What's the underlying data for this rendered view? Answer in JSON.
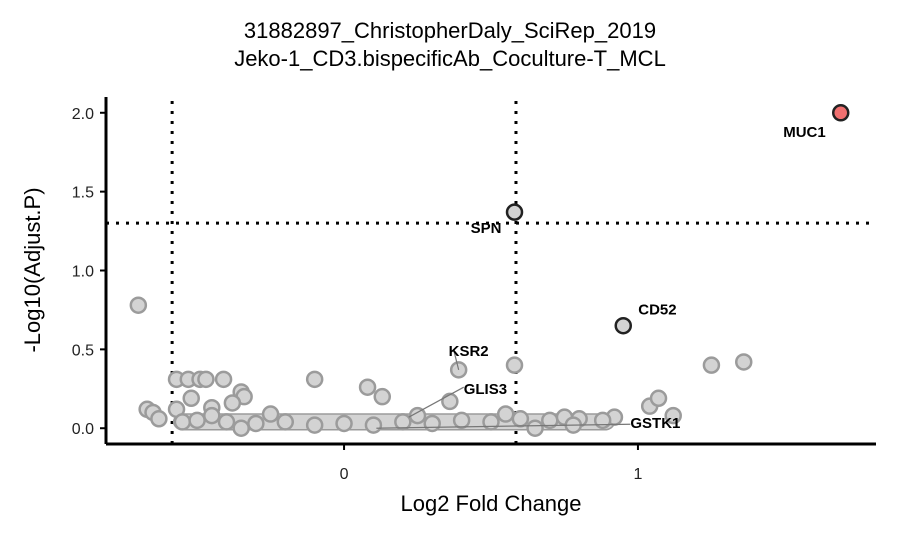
{
  "chart_data": {
    "type": "scatter",
    "title": "31882897_ChristopherDaly_SciRep_2019",
    "subtitle": "Jeko-1_CD3.bispecificAb_Coculture-T_MCL",
    "xlabel": "Log2 Fold Change",
    "ylabel": "-Log10(Adjust.P)",
    "xlim": [
      -0.81,
      1.81
    ],
    "ylim": [
      -0.1,
      2.1
    ],
    "x_ticks": [
      0,
      1
    ],
    "x_tick_labels": [
      "0",
      "1"
    ],
    "y_ticks": [
      0.0,
      0.5,
      1.0,
      1.5,
      2.0
    ],
    "y_tick_labels": [
      "0.0",
      "0.5",
      "1.0",
      "1.5",
      "2.0"
    ],
    "grid": false,
    "thresholds": {
      "log2fc": [
        -0.585,
        0.585
      ],
      "neg_log10_p": 1.3
    },
    "colors": {
      "background_point": "#d3d3d3",
      "background_edge": "#9b9b9b",
      "sig_point": "#f07070",
      "highlight_edge": "#222222",
      "axis": "#000000"
    },
    "points": [
      {
        "x": -0.7,
        "y": 0.78
      },
      {
        "x": -0.57,
        "y": 0.31
      },
      {
        "x": -0.53,
        "y": 0.31
      },
      {
        "x": -0.49,
        "y": 0.31
      },
      {
        "x": -0.47,
        "y": 0.31
      },
      {
        "x": -0.41,
        "y": 0.31
      },
      {
        "x": -0.35,
        "y": 0.23
      },
      {
        "x": -0.34,
        "y": 0.2
      },
      {
        "x": -0.52,
        "y": 0.19
      },
      {
        "x": -0.67,
        "y": 0.12
      },
      {
        "x": -0.65,
        "y": 0.1
      },
      {
        "x": -0.63,
        "y": 0.06
      },
      {
        "x": -0.57,
        "y": 0.12
      },
      {
        "x": -0.45,
        "y": 0.13
      },
      {
        "x": -0.38,
        "y": 0.16
      },
      {
        "x": -0.1,
        "y": 0.31
      },
      {
        "x": 0.08,
        "y": 0.26
      },
      {
        "x": 0.13,
        "y": 0.2
      },
      {
        "x": 0.36,
        "y": 0.17
      },
      {
        "x": 0.39,
        "y": 0.37
      },
      {
        "x": 0.58,
        "y": 0.4
      },
      {
        "x": 0.92,
        "y": 0.07
      },
      {
        "x": 1.04,
        "y": 0.14
      },
      {
        "x": 1.07,
        "y": 0.19
      },
      {
        "x": 1.12,
        "y": 0.08
      },
      {
        "x": 1.25,
        "y": 0.4
      },
      {
        "x": 1.36,
        "y": 0.42
      },
      {
        "x": -0.55,
        "y": 0.04
      },
      {
        "x": -0.5,
        "y": 0.05
      },
      {
        "x": -0.4,
        "y": 0.04
      },
      {
        "x": -0.3,
        "y": 0.03
      },
      {
        "x": -0.2,
        "y": 0.04
      },
      {
        "x": -0.1,
        "y": 0.02
      },
      {
        "x": 0.0,
        "y": 0.03
      },
      {
        "x": 0.1,
        "y": 0.02
      },
      {
        "x": 0.2,
        "y": 0.04
      },
      {
        "x": 0.3,
        "y": 0.03
      },
      {
        "x": 0.4,
        "y": 0.05
      },
      {
        "x": 0.5,
        "y": 0.04
      },
      {
        "x": 0.6,
        "y": 0.06
      },
      {
        "x": 0.7,
        "y": 0.05
      },
      {
        "x": 0.8,
        "y": 0.06
      },
      {
        "x": 0.88,
        "y": 0.05
      },
      {
        "x": -0.45,
        "y": 0.08
      },
      {
        "x": -0.25,
        "y": 0.09
      },
      {
        "x": 0.25,
        "y": 0.08
      },
      {
        "x": 0.55,
        "y": 0.09
      },
      {
        "x": 0.75,
        "y": 0.07
      },
      {
        "x": -0.35,
        "y": 0.0
      },
      {
        "x": 0.65,
        "y": 0.0
      },
      {
        "x": 0.78,
        "y": 0.02
      }
    ],
    "highlighted_points": [
      {
        "label": "MUC1",
        "x": 1.69,
        "y": 2.0,
        "significant": true
      },
      {
        "label": "SPN",
        "x": 0.58,
        "y": 1.37,
        "significant": false
      },
      {
        "label": "CD52",
        "x": 0.95,
        "y": 0.65,
        "significant": false
      }
    ],
    "annotations": [
      {
        "label": "MUC1",
        "x": 1.69,
        "y": 2.0
      },
      {
        "label": "SPN",
        "x": 0.58,
        "y": 1.37
      },
      {
        "label": "CD52",
        "x": 0.95,
        "y": 0.65
      },
      {
        "label": "KSR2",
        "x": 0.39,
        "y": 0.37
      },
      {
        "label": "GLIS3",
        "x": 0.22,
        "y": 0.07
      },
      {
        "label": "GSTK1",
        "x": 0.11,
        "y": 0.0
      }
    ]
  }
}
